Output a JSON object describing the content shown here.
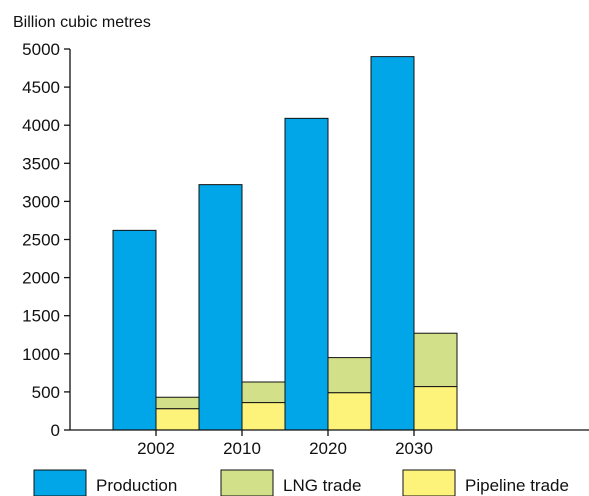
{
  "chart_data": {
    "type": "bar",
    "ylabel": "Billion cubic metres",
    "ylim": [
      0,
      5000
    ],
    "yticks": [
      0,
      500,
      1000,
      1500,
      2000,
      2500,
      3000,
      3500,
      4000,
      4500,
      5000
    ],
    "categories": [
      "2002",
      "2010",
      "2020",
      "2030"
    ],
    "series": [
      {
        "name": "Production",
        "values": [
          2620,
          3220,
          4090,
          4900
        ],
        "color": "#00a6e8"
      },
      {
        "name": "LNG trade",
        "values": [
          150,
          270,
          460,
          700
        ],
        "color": "#d3e08a",
        "stack": "trade"
      },
      {
        "name": "Pipeline trade",
        "values": [
          280,
          360,
          490,
          570
        ],
        "color": "#fdf27a",
        "stack": "trade"
      }
    ],
    "legend_position": "bottom",
    "grid": false
  }
}
